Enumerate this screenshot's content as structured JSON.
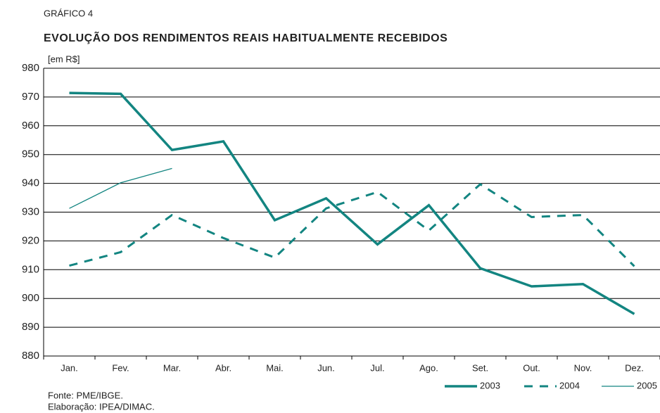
{
  "chart_data": {
    "type": "line",
    "kicker": "GRÁFICO 4",
    "title": "EVOLUÇÃO DOS RENDIMENTOS REAIS HABITUALMENTE RECEBIDOS",
    "y_label": "[em R$]",
    "notes": [
      "Fonte: PME/IBGE.",
      "Elaboração: IPEA/DIMAC."
    ],
    "categories": [
      "Jan.",
      "Fev.",
      "Mar.",
      "Abr.",
      "Mai.",
      "Jun.",
      "Jul.",
      "Ago.",
      "Set.",
      "Out.",
      "Nov.",
      "Dez."
    ],
    "series": [
      {
        "name": "2003",
        "color": "#138581",
        "line_style": "solid",
        "line_width": 3.5,
        "values": [
          971.4,
          971.1,
          951.6,
          954.6,
          927.2,
          934.8,
          918.8,
          932.4,
          910.5,
          904.2,
          905.0,
          894.6
        ]
      },
      {
        "name": "2004",
        "color": "#138581",
        "line_style": "dashed",
        "line_width": 3,
        "values": [
          911.4,
          916.1,
          929.0,
          921.0,
          914.2,
          931.3,
          937.0,
          923.6,
          939.7,
          928.3,
          929.0,
          911.2
        ]
      },
      {
        "name": "2005",
        "color": "#138581",
        "line_style": "solid",
        "line_width": 1.3,
        "values": [
          931.3,
          940.2,
          945.2,
          null,
          null,
          null,
          null,
          null,
          null,
          null,
          null,
          null
        ]
      }
    ],
    "ylim": [
      880,
      980
    ],
    "yticks": [
      880,
      890,
      900,
      910,
      920,
      930,
      940,
      950,
      960,
      970,
      980
    ],
    "grid": true,
    "legend": "bottom-right"
  }
}
